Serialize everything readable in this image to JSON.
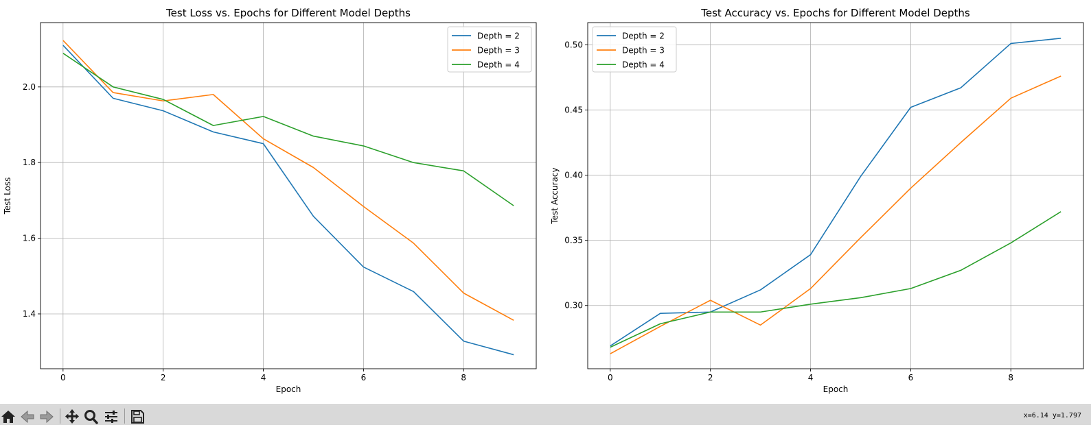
{
  "chart_data": [
    {
      "type": "line",
      "title": "Test Loss vs. Epochs for Different Model Depths",
      "xlabel": "Epoch",
      "ylabel": "Test Loss",
      "x": [
        0,
        1,
        2,
        3,
        4,
        5,
        6,
        7,
        8,
        9
      ],
      "xlim": [
        -0.45,
        9.45
      ],
      "ylim": [
        1.255,
        2.17
      ],
      "xticks": [
        0,
        2,
        4,
        6,
        8
      ],
      "yticks": [
        1.4,
        1.6,
        1.8,
        2.0
      ],
      "ytick_decimals": 1,
      "grid": true,
      "legend_position": "upper right",
      "series": [
        {
          "name": "Depth = 2",
          "color": "#1f77b4",
          "values": [
            2.11,
            1.97,
            1.937,
            1.881,
            1.85,
            1.658,
            1.524,
            1.459,
            1.328,
            1.292
          ]
        },
        {
          "name": "Depth = 3",
          "color": "#ff7f0e",
          "values": [
            2.123,
            1.985,
            1.963,
            1.98,
            1.863,
            1.787,
            1.684,
            1.587,
            1.455,
            1.383
          ]
        },
        {
          "name": "Depth = 4",
          "color": "#2ca02c",
          "values": [
            2.089,
            2.0,
            1.967,
            1.898,
            1.922,
            1.87,
            1.844,
            1.8,
            1.778,
            1.686
          ]
        }
      ]
    },
    {
      "type": "line",
      "title": "Test Accuracy vs. Epochs for Different Model Depths",
      "xlabel": "Epoch",
      "ylabel": "Test Accuracy",
      "x": [
        0,
        1,
        2,
        3,
        4,
        5,
        6,
        7,
        8,
        9
      ],
      "xlim": [
        -0.45,
        9.45
      ],
      "ylim": [
        0.2515,
        0.517
      ],
      "xticks": [
        0,
        2,
        4,
        6,
        8
      ],
      "yticks": [
        0.3,
        0.35,
        0.4,
        0.45,
        0.5
      ],
      "ytick_decimals": 2,
      "grid": true,
      "legend_position": "upper left",
      "series": [
        {
          "name": "Depth = 2",
          "color": "#1f77b4",
          "values": [
            0.269,
            0.294,
            0.295,
            0.312,
            0.339,
            0.399,
            0.452,
            0.467,
            0.501,
            0.505
          ]
        },
        {
          "name": "Depth = 3",
          "color": "#ff7f0e",
          "values": [
            0.263,
            0.284,
            0.304,
            0.285,
            0.313,
            0.352,
            0.39,
            0.425,
            0.459,
            0.476
          ]
        },
        {
          "name": "Depth = 4",
          "color": "#2ca02c",
          "values": [
            0.268,
            0.286,
            0.295,
            0.295,
            0.301,
            0.306,
            0.313,
            0.327,
            0.348,
            0.372
          ]
        }
      ]
    }
  ],
  "toolbar": {
    "buttons": [
      {
        "name": "home-button",
        "icon": "home-icon"
      },
      {
        "name": "back-button",
        "icon": "arrow-left-icon"
      },
      {
        "name": "forward-button",
        "icon": "arrow-right-icon"
      },
      {
        "name": "pan-button",
        "icon": "move-icon"
      },
      {
        "name": "zoom-button",
        "icon": "magnifier-icon"
      },
      {
        "name": "configure-subplots-button",
        "icon": "sliders-icon"
      },
      {
        "name": "save-button",
        "icon": "floppy-disk-icon"
      }
    ],
    "coordinates": "x=6.14 y=1.797"
  }
}
